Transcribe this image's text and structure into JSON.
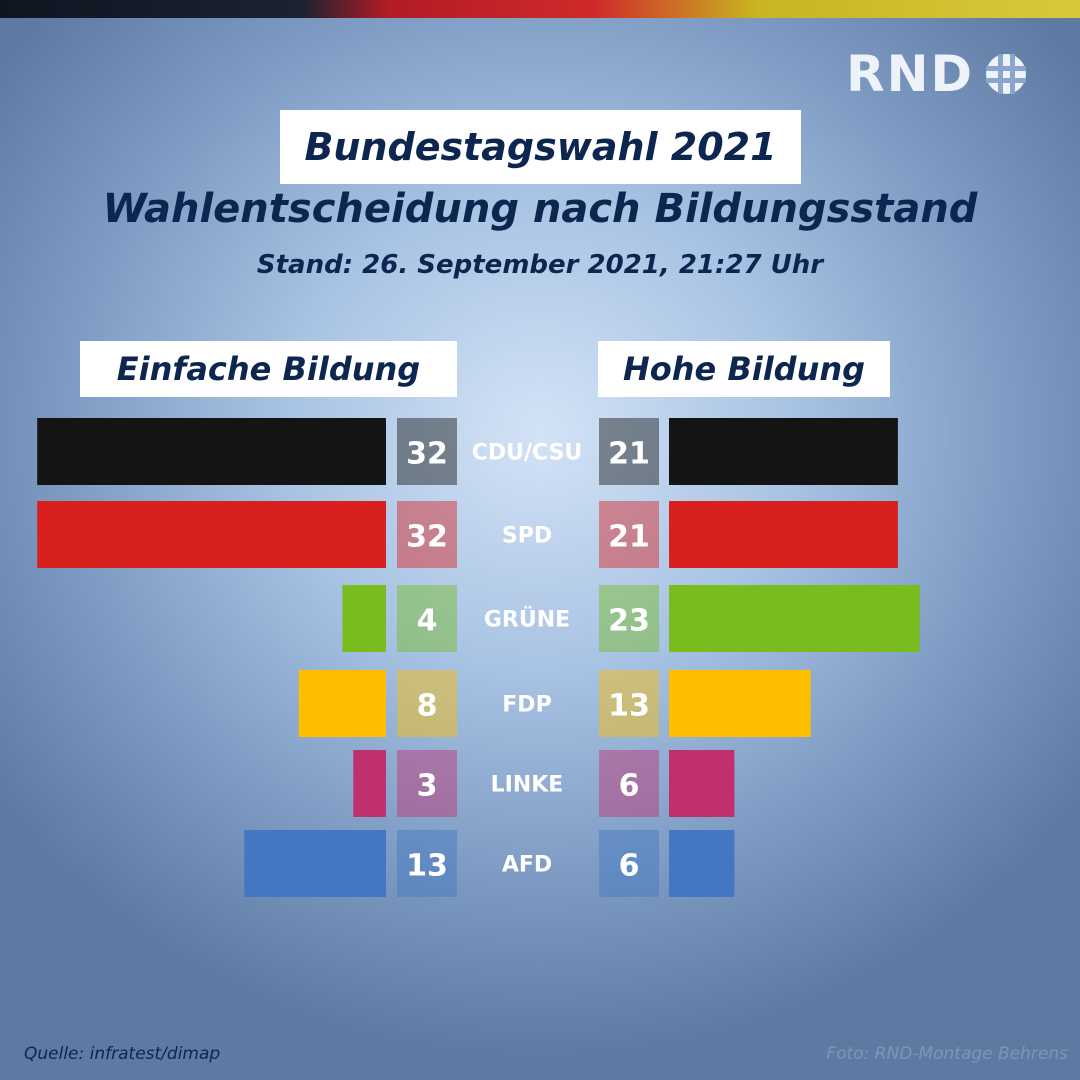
{
  "brand": {
    "logo_text": "RND",
    "logo_icon": "rnd-grid-icon"
  },
  "header": {
    "title": "Bundestagswahl 2021",
    "subtitle": "Wahlentscheidung nach Bildungsstand",
    "stand": "Stand: 26. September 2021, 21:27 Uhr"
  },
  "footer": {
    "source": "Quelle: infratest/dimap",
    "credit": "Foto: RND-Montage Behrens"
  },
  "chart_data": {
    "type": "bar",
    "title": "Wahlentscheidung nach Bildungsstand",
    "unit": "%",
    "categories": [
      "CDU/CSU",
      "SPD",
      "GRÜNE",
      "FDP",
      "LINKE",
      "AFD"
    ],
    "colors": [
      "#141414",
      "#d8201f",
      "#78bc1e",
      "#ffbe00",
      "#c1306e",
      "#4377c3"
    ],
    "series": [
      {
        "name": "Einfache Bildung",
        "values": [
          32,
          32,
          4,
          8,
          3,
          13
        ]
      },
      {
        "name": "Hohe Bildung",
        "values": [
          21,
          21,
          23,
          13,
          6,
          6
        ]
      }
    ]
  }
}
